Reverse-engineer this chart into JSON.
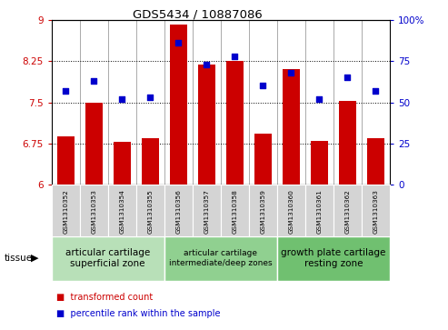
{
  "title": "GDS5434 / 10887086",
  "samples": [
    "GSM1310352",
    "GSM1310353",
    "GSM1310354",
    "GSM1310355",
    "GSM1310356",
    "GSM1310357",
    "GSM1310358",
    "GSM1310359",
    "GSM1310360",
    "GSM1310361",
    "GSM1310362",
    "GSM1310363"
  ],
  "bar_values": [
    6.88,
    7.5,
    6.78,
    6.85,
    8.92,
    8.18,
    8.25,
    6.93,
    8.1,
    6.8,
    7.52,
    6.85
  ],
  "dot_values": [
    57,
    63,
    52,
    53,
    86,
    73,
    78,
    60,
    68,
    52,
    65,
    57
  ],
  "bar_color": "#cc0000",
  "dot_color": "#0000cc",
  "ylim_left": [
    6,
    9
  ],
  "ylim_right": [
    0,
    100
  ],
  "yticks_left": [
    6,
    6.75,
    7.5,
    8.25,
    9
  ],
  "ytick_labels_left": [
    "6",
    "6.75",
    "7.5",
    "8.25",
    "9"
  ],
  "yticks_right": [
    0,
    25,
    50,
    75,
    100
  ],
  "ytick_labels_right": [
    "0",
    "25",
    "50",
    "75",
    "100%"
  ],
  "hlines": [
    6.75,
    7.5,
    8.25
  ],
  "groups": [
    {
      "label": "articular cartilage\nsuperficial zone",
      "start": 0,
      "end": 3,
      "color": "#b8e0b8",
      "fontsize": 7.5
    },
    {
      "label": "articular cartilage\nintermediate/deep zones",
      "start": 4,
      "end": 7,
      "color": "#90d090",
      "fontsize": 6.5
    },
    {
      "label": "growth plate cartilage\nresting zone",
      "start": 8,
      "end": 11,
      "color": "#70c070",
      "fontsize": 7.5
    }
  ],
  "tissue_label": "tissue",
  "legend_items": [
    {
      "color": "#cc0000",
      "label": "transformed count"
    },
    {
      "color": "#0000cc",
      "label": "percentile rank within the sample"
    }
  ],
  "bar_width": 0.6,
  "base_value": 6.0
}
